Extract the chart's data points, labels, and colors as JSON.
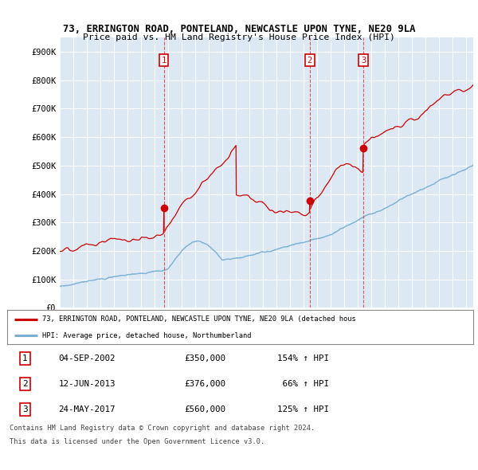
{
  "title_line1": "73, ERRINGTON ROAD, PONTELAND, NEWCASTLE UPON TYNE, NE20 9LA",
  "title_line2": "Price paid vs. HM Land Registry's House Price Index (HPI)",
  "ylabel_ticks": [
    "£0",
    "£100K",
    "£200K",
    "£300K",
    "£400K",
    "£500K",
    "£600K",
    "£700K",
    "£800K",
    "£900K"
  ],
  "ytick_values": [
    0,
    100000,
    200000,
    300000,
    400000,
    500000,
    600000,
    700000,
    800000,
    900000
  ],
  "xlim_start": 1995.0,
  "xlim_end": 2025.5,
  "ylim_top": 950000,
  "bg_color": "#dce9f5",
  "red_line_color": "#cc0000",
  "blue_line_color": "#7bafd4",
  "dashed_line_color": "#dd4444",
  "transaction_box_color": "#cc0000",
  "sales": [
    {
      "date_num": 2002.68,
      "price": 350000,
      "label": "1"
    },
    {
      "date_num": 2013.44,
      "price": 376000,
      "label": "2"
    },
    {
      "date_num": 2017.39,
      "price": 560000,
      "label": "3"
    }
  ],
  "legend_label_red": "73, ERRINGTON ROAD, PONTELAND, NEWCASTLE UPON TYNE, NE20 9LA (detached hous",
  "legend_label_blue": "HPI: Average price, detached house, Northumberland",
  "table_rows": [
    {
      "num": "1",
      "date": "04-SEP-2002",
      "price": "£350,000",
      "pct": "154% ↑ HPI"
    },
    {
      "num": "2",
      "date": "12-JUN-2013",
      "price": "£376,000",
      "pct": " 66% ↑ HPI"
    },
    {
      "num": "3",
      "date": "24-MAY-2017",
      "price": "£560,000",
      "pct": "125% ↑ HPI"
    }
  ],
  "footer_line1": "Contains HM Land Registry data © Crown copyright and database right 2024.",
  "footer_line2": "This data is licensed under the Open Government Licence v3.0."
}
